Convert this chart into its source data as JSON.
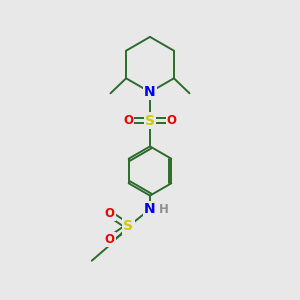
{
  "bg_color": "#e8e8e8",
  "bond_color": "#2d6b2d",
  "N_color": "#0000ee",
  "S_color": "#cccc00",
  "O_color": "#ee0000",
  "H_color": "#909090",
  "fontsize": 10,
  "small_fontsize": 8.5,
  "lw": 1.4,
  "figsize": [
    3.0,
    3.0
  ],
  "dpi": 100,
  "xlim": [
    0,
    10
  ],
  "ylim": [
    0,
    10
  ]
}
